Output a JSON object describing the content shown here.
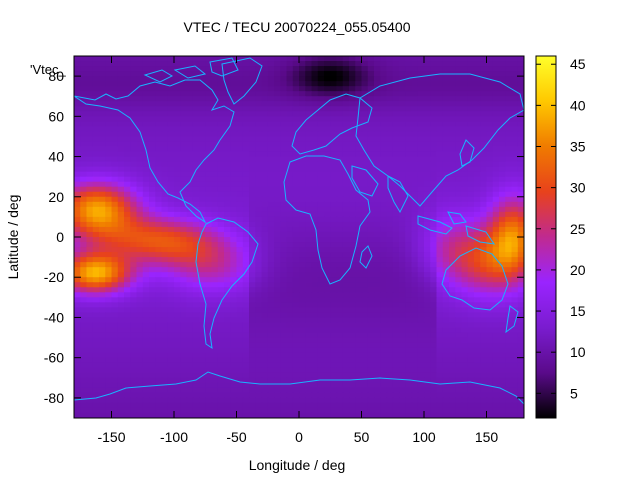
{
  "chart_data": {
    "type": "heatmap",
    "title": "VTEC / TECU 20070224_055.05400",
    "xlabel": "Longitude / deg",
    "ylabel": "Latitude / deg",
    "plot_key_label": "'Vtec_",
    "xlim": [
      -180,
      180
    ],
    "ylim": [
      -90,
      90
    ],
    "x_ticks": [
      -150,
      -100,
      -50,
      0,
      50,
      100,
      150
    ],
    "y_ticks": [
      -80,
      -60,
      -40,
      -20,
      0,
      20,
      40,
      60,
      80
    ],
    "colorbar": {
      "range": [
        2,
        46
      ],
      "ticks": [
        5,
        10,
        15,
        20,
        25,
        30,
        35,
        40,
        45
      ],
      "palette": [
        "#000000",
        "#5a0a8a",
        "#7a1ccf",
        "#9a24ff",
        "#c02a90",
        "#e8421c",
        "#f07b00",
        "#ffc800",
        "#ffff2a"
      ]
    },
    "grid": false,
    "overlay": "coastlines",
    "overlay_color": "#19b4ff",
    "anomaly_centers": [
      {
        "lon": -160,
        "lat": 14,
        "peak": 36,
        "description": "Pacific crest north"
      },
      {
        "lon": -162,
        "lat": -18,
        "peak": 38,
        "description": "Pacific crest south"
      },
      {
        "lon": -110,
        "lat": 0,
        "peak": 24,
        "description": "Eastern Pacific band"
      },
      {
        "lon": -70,
        "lat": -14,
        "peak": 20,
        "description": "South America"
      },
      {
        "lon": 170,
        "lat": 0,
        "peak": 30,
        "description": "Western Pacific crest"
      },
      {
        "lon": 150,
        "lat": -15,
        "peak": 26,
        "description": "Australia region"
      },
      {
        "lon": 25,
        "lat": 75,
        "peak": 3,
        "description": "Arctic minimum"
      }
    ]
  }
}
